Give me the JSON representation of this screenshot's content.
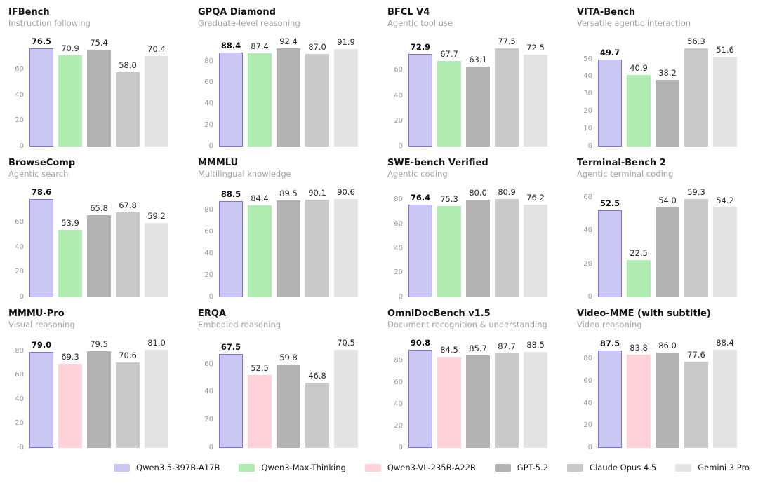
{
  "figure": {
    "background": "#ffffff",
    "value_label_decimals": 1,
    "headroom_factor": 1.02
  },
  "models": [
    {
      "name": "Qwen3.5-397B-A17B",
      "fill": "#cac7f3",
      "border": "#7d71e0",
      "emphasized": true
    },
    {
      "name": "Qwen3-Max-Thinking",
      "fill": "#b0ebb0"
    },
    {
      "name": "Qwen3-VL-235B-A22B",
      "fill": "#ffd1d8"
    },
    {
      "name": "GPT-5.2",
      "fill": "#b2b2b2"
    },
    {
      "name": "Claude Opus 4.5",
      "fill": "#c9c9c9"
    },
    {
      "name": "Gemini 3 Pro",
      "fill": "#e4e4e4"
    }
  ],
  "chart_data": [
    {
      "type": "bar",
      "title": "IFBench",
      "subtitle": "Instruction following",
      "yticks": [
        0,
        20,
        40,
        60
      ],
      "grid": false,
      "series": [
        {
          "name": "Qwen3.5-397B-A17B",
          "value": 76.5
        },
        {
          "name": "Qwen3-Max-Thinking",
          "value": 70.9
        },
        {
          "name": "GPT-5.2",
          "value": 75.4
        },
        {
          "name": "Claude Opus 4.5",
          "value": 58.0
        },
        {
          "name": "Gemini 3 Pro",
          "value": 70.4
        }
      ]
    },
    {
      "type": "bar",
      "title": "GPQA Diamond",
      "subtitle": "Graduate-level reasoning",
      "yticks": [
        0,
        20,
        40,
        60,
        80
      ],
      "grid": false,
      "series": [
        {
          "name": "Qwen3.5-397B-A17B",
          "value": 88.4
        },
        {
          "name": "Qwen3-Max-Thinking",
          "value": 87.4
        },
        {
          "name": "GPT-5.2",
          "value": 92.4
        },
        {
          "name": "Claude Opus 4.5",
          "value": 87.0
        },
        {
          "name": "Gemini 3 Pro",
          "value": 91.9
        }
      ]
    },
    {
      "type": "bar",
      "title": "BFCL V4",
      "subtitle": "Agentic tool use",
      "yticks": [
        0,
        20,
        40,
        60
      ],
      "grid": false,
      "series": [
        {
          "name": "Qwen3.5-397B-A17B",
          "value": 72.9
        },
        {
          "name": "Qwen3-Max-Thinking",
          "value": 67.7
        },
        {
          "name": "GPT-5.2",
          "value": 63.1
        },
        {
          "name": "Claude Opus 4.5",
          "value": 77.5
        },
        {
          "name": "Gemini 3 Pro",
          "value": 72.5
        }
      ]
    },
    {
      "type": "bar",
      "title": "VITA-Bench",
      "subtitle": "Versatile agentic interaction",
      "yticks": [
        0,
        10,
        20,
        30,
        40,
        50
      ],
      "grid": false,
      "series": [
        {
          "name": "Qwen3.5-397B-A17B",
          "value": 49.7
        },
        {
          "name": "Qwen3-Max-Thinking",
          "value": 40.9
        },
        {
          "name": "GPT-5.2",
          "value": 38.2
        },
        {
          "name": "Claude Opus 4.5",
          "value": 56.3
        },
        {
          "name": "Gemini 3 Pro",
          "value": 51.6
        }
      ]
    },
    {
      "type": "bar",
      "title": "BrowseComp",
      "subtitle": "Agentic search",
      "yticks": [
        0,
        20,
        40,
        60
      ],
      "grid": false,
      "series": [
        {
          "name": "Qwen3.5-397B-A17B",
          "value": 78.6
        },
        {
          "name": "Qwen3-Max-Thinking",
          "value": 53.9
        },
        {
          "name": "GPT-5.2",
          "value": 65.8
        },
        {
          "name": "Claude Opus 4.5",
          "value": 67.8
        },
        {
          "name": "Gemini 3 Pro",
          "value": 59.2
        }
      ]
    },
    {
      "type": "bar",
      "title": "MMMLU",
      "subtitle": "Multilingual knowledge",
      "yticks": [
        0,
        20,
        40,
        60,
        80
      ],
      "grid": false,
      "series": [
        {
          "name": "Qwen3.5-397B-A17B",
          "value": 88.5
        },
        {
          "name": "Qwen3-Max-Thinking",
          "value": 84.4
        },
        {
          "name": "GPT-5.2",
          "value": 89.5
        },
        {
          "name": "Claude Opus 4.5",
          "value": 90.1
        },
        {
          "name": "Gemini 3 Pro",
          "value": 90.6
        }
      ]
    },
    {
      "type": "bar",
      "title": "SWE-bench Verified",
      "subtitle": "Agentic coding",
      "yticks": [
        0,
        20,
        40,
        60,
        80
      ],
      "grid": false,
      "series": [
        {
          "name": "Qwen3.5-397B-A17B",
          "value": 76.4
        },
        {
          "name": "Qwen3-Max-Thinking",
          "value": 75.3
        },
        {
          "name": "GPT-5.2",
          "value": 80.0
        },
        {
          "name": "Claude Opus 4.5",
          "value": 80.9
        },
        {
          "name": "Gemini 3 Pro",
          "value": 76.2
        }
      ]
    },
    {
      "type": "bar",
      "title": "Terminal-Bench 2",
      "subtitle": "Agentic terminal coding",
      "yticks": [
        0,
        20,
        40,
        60
      ],
      "grid": false,
      "series": [
        {
          "name": "Qwen3.5-397B-A17B",
          "value": 52.5
        },
        {
          "name": "Qwen3-Max-Thinking",
          "value": 22.5
        },
        {
          "name": "GPT-5.2",
          "value": 54.0
        },
        {
          "name": "Claude Opus 4.5",
          "value": 59.3
        },
        {
          "name": "Gemini 3 Pro",
          "value": 54.2
        }
      ]
    },
    {
      "type": "bar",
      "title": "MMMU-Pro",
      "subtitle": "Visual reasoning",
      "yticks": [
        0,
        20,
        40,
        60,
        80
      ],
      "grid": false,
      "series": [
        {
          "name": "Qwen3.5-397B-A17B",
          "value": 79.0
        },
        {
          "name": "Qwen3-VL-235B-A22B",
          "value": 69.3
        },
        {
          "name": "GPT-5.2",
          "value": 79.5
        },
        {
          "name": "Claude Opus 4.5",
          "value": 70.6
        },
        {
          "name": "Gemini 3 Pro",
          "value": 81.0
        }
      ]
    },
    {
      "type": "bar",
      "title": "ERQA",
      "subtitle": "Embodied reasoning",
      "yticks": [
        0,
        20,
        40,
        60
      ],
      "grid": false,
      "series": [
        {
          "name": "Qwen3.5-397B-A17B",
          "value": 67.5
        },
        {
          "name": "Qwen3-VL-235B-A22B",
          "value": 52.5
        },
        {
          "name": "GPT-5.2",
          "value": 59.8
        },
        {
          "name": "Claude Opus 4.5",
          "value": 46.8
        },
        {
          "name": "Gemini 3 Pro",
          "value": 70.5
        }
      ]
    },
    {
      "type": "bar",
      "title": "OmniDocBench v1.5",
      "subtitle": "Document recognition & understanding",
      "yticks": [
        0,
        20,
        40,
        60,
        80
      ],
      "grid": false,
      "series": [
        {
          "name": "Qwen3.5-397B-A17B",
          "value": 90.8
        },
        {
          "name": "Qwen3-VL-235B-A22B",
          "value": 84.5
        },
        {
          "name": "GPT-5.2",
          "value": 85.7
        },
        {
          "name": "Claude Opus 4.5",
          "value": 87.7
        },
        {
          "name": "Gemini 3 Pro",
          "value": 88.5
        }
      ]
    },
    {
      "type": "bar",
      "title": "Video-MME (with subtitle)",
      "subtitle": "Video reasoning",
      "yticks": [
        0,
        20,
        40,
        60,
        80
      ],
      "grid": false,
      "series": [
        {
          "name": "Qwen3.5-397B-A17B",
          "value": 87.5
        },
        {
          "name": "Qwen3-VL-235B-A22B",
          "value": 83.8
        },
        {
          "name": "GPT-5.2",
          "value": 86.0
        },
        {
          "name": "Claude Opus 4.5",
          "value": 77.6
        },
        {
          "name": "Gemini 3 Pro",
          "value": 88.4
        }
      ]
    }
  ],
  "legend": {
    "position": "bottom-center",
    "items": [
      "Qwen3.5-397B-A17B",
      "Qwen3-Max-Thinking",
      "Qwen3-VL-235B-A22B",
      "GPT-5.2",
      "Claude Opus 4.5",
      "Gemini 3 Pro"
    ]
  }
}
